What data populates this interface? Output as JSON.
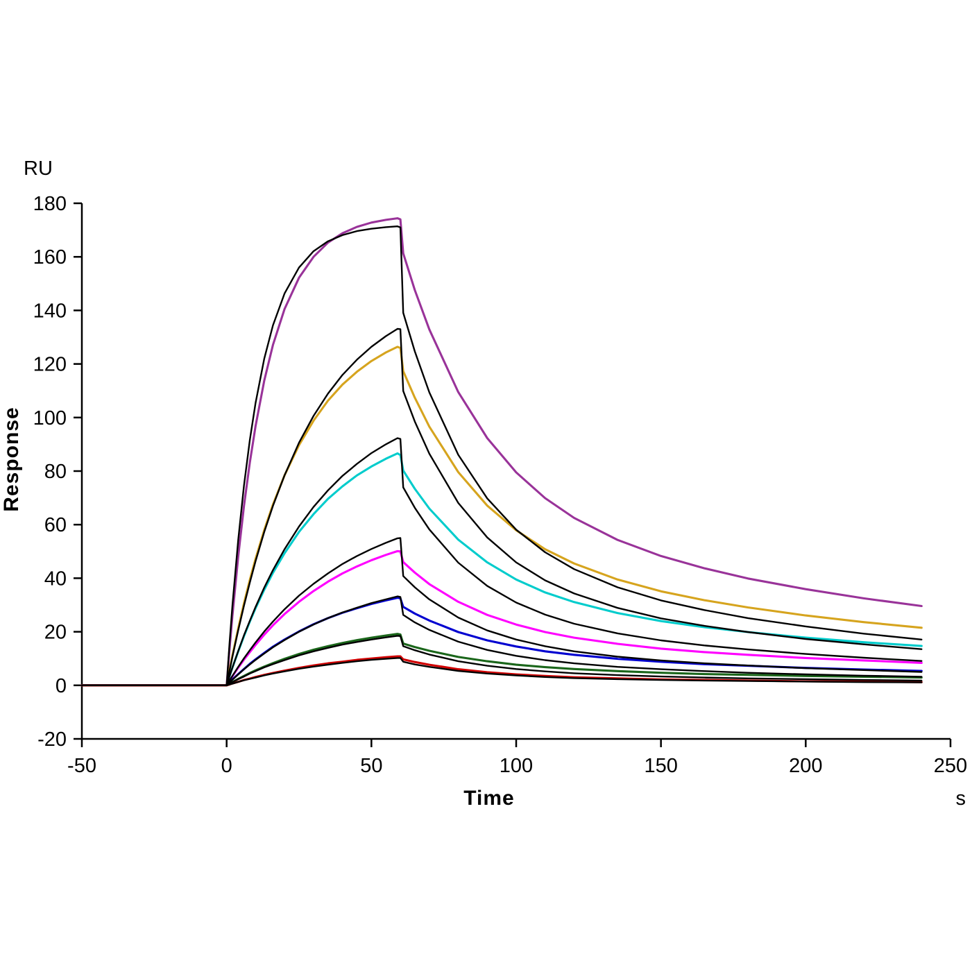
{
  "figure": {
    "background": "#ffffff",
    "axis_color": "#000000"
  },
  "chart_data": {
    "type": "line",
    "title": "",
    "xlabel": "Time",
    "x_unit": "s",
    "ylabel": "Response",
    "y_unit": "RU",
    "xlim": [
      -50,
      250
    ],
    "ylim": [
      -20,
      180
    ],
    "xticks": [
      -50,
      0,
      50,
      100,
      150,
      200,
      250
    ],
    "yticks": [
      -20,
      0,
      20,
      40,
      60,
      80,
      100,
      120,
      140,
      160,
      180
    ],
    "grid": false,
    "legend": "none",
    "association_start": 0,
    "dissociation_start": 60,
    "x": [
      -50,
      -5,
      0,
      1,
      2,
      4,
      6,
      8,
      10,
      13,
      16,
      20,
      25,
      30,
      35,
      40,
      45,
      50,
      55,
      59,
      60,
      61,
      65,
      70,
      80,
      90,
      100,
      110,
      120,
      135,
      150,
      165,
      180,
      200,
      220,
      240
    ],
    "series": [
      {
        "name": "trace-purple",
        "type": "data",
        "color": "#993399",
        "peak_ru": 174,
        "values": [
          0,
          0,
          0,
          13.5,
          26,
          48.2,
          67.1,
          83.2,
          96.9,
          113.8,
          127.1,
          140.5,
          152.2,
          160,
          165.3,
          168.8,
          171.2,
          172.8,
          173.8,
          174.4,
          174,
          161.3,
          147.6,
          132.9,
          109.5,
          92.3,
          79.5,
          69.9,
          62.5,
          54.3,
          48.3,
          43.7,
          39.9,
          35.9,
          32.5,
          29.6
        ]
      },
      {
        "name": "trace-gold",
        "type": "data",
        "color": "#D6A41E",
        "peak_ru": 127,
        "values": [
          0,
          0,
          0,
          5.7,
          11.1,
          21.3,
          30.7,
          39.4,
          47.3,
          58,
          67.5,
          78.4,
          89.7,
          98.8,
          106.3,
          112.3,
          117.1,
          121.1,
          124.3,
          126.4,
          126,
          117.3,
          107.4,
          96.6,
          79.6,
          67.1,
          57.9,
          50.8,
          45.5,
          39.5,
          35.1,
          31.8,
          29.1,
          26.1,
          23.6,
          21.5
        ]
      },
      {
        "name": "trace-cyan",
        "type": "data",
        "color": "#00CCCC",
        "peak_ru": 86,
        "values": [
          0,
          0,
          0,
          3.3,
          6.6,
          12.7,
          18.4,
          23.8,
          28.8,
          35.7,
          42,
          49.3,
          57.3,
          63.9,
          69.6,
          74.3,
          78.4,
          81.7,
          84.6,
          86.6,
          86,
          80.2,
          73.4,
          66,
          54.4,
          45.9,
          39.5,
          34.7,
          31.1,
          27,
          24,
          21.7,
          19.9,
          17.8,
          16.1,
          14.7
        ]
      },
      {
        "name": "trace-magenta",
        "type": "data",
        "color": "#FF00FF",
        "peak_ru": 50,
        "values": [
          0,
          0,
          0,
          1.7,
          3.4,
          6.6,
          9.6,
          12.4,
          15.1,
          18.9,
          22.4,
          26.6,
          31.2,
          35.2,
          38.7,
          41.8,
          44.4,
          46.7,
          48.7,
          50.1,
          50,
          46,
          42.1,
          37.8,
          31.2,
          26.3,
          22.7,
          19.9,
          17.8,
          15.5,
          13.7,
          12.4,
          11.4,
          10.2,
          9.3,
          8.4
        ]
      },
      {
        "name": "trace-blue",
        "type": "data",
        "color": "#0000D0",
        "peak_ru": 33,
        "values": [
          0,
          0,
          0,
          1.1,
          2.2,
          4.2,
          6.1,
          8,
          9.7,
          12.1,
          14.4,
          17.1,
          20.1,
          22.8,
          25.1,
          27.1,
          28.8,
          30.4,
          31.7,
          32.7,
          32.5,
          29.3,
          26.8,
          24.2,
          19.9,
          16.8,
          14.5,
          12.7,
          11.4,
          9.9,
          8.8,
          7.9,
          7.3,
          6.5,
          5.9,
          5.4
        ]
      },
      {
        "name": "trace-green",
        "type": "data",
        "color": "#1A661A",
        "peak_ru": 19,
        "values": [
          0,
          0,
          0,
          0.6,
          1.2,
          2.4,
          3.5,
          4.6,
          5.6,
          7,
          8.3,
          9.9,
          11.7,
          13.3,
          14.6,
          15.8,
          16.9,
          17.8,
          18.6,
          19.2,
          19,
          15.6,
          14.3,
          12.9,
          10.6,
          9,
          7.7,
          6.8,
          6.1,
          5.3,
          4.7,
          4.2,
          3.9,
          3.5,
          3.2,
          2.9
        ]
      },
      {
        "name": "trace-red",
        "type": "data",
        "color": "#D00000",
        "peak_ru": 11,
        "values": [
          0,
          0,
          0,
          0.3,
          0.7,
          1.3,
          2,
          2.5,
          3.1,
          3.9,
          4.6,
          5.5,
          6.5,
          7.4,
          8.2,
          8.8,
          9.5,
          10,
          10.5,
          10.8,
          10.8,
          9.7,
          8.7,
          7.7,
          6,
          4.9,
          4.1,
          3.5,
          3,
          2.6,
          2.2,
          2,
          1.8,
          1.5,
          1.4,
          1.2
        ]
      },
      {
        "name": "fit-purple",
        "type": "fit",
        "color": "#000000",
        "peak_ru": 170,
        "values": [
          0,
          0,
          0,
          15.6,
          29.8,
          54.4,
          74.7,
          91.6,
          105.5,
          122,
          134.4,
          146.3,
          156,
          162.1,
          165.8,
          168.1,
          169.6,
          170.5,
          171.1,
          171.4,
          171,
          139.1,
          124.7,
          109.4,
          86.1,
          69.8,
          58.1,
          49.7,
          43.4,
          36.6,
          31.7,
          28.1,
          25.1,
          22,
          19.3,
          17.1
        ]
      },
      {
        "name": "fit-gold",
        "type": "fit",
        "color": "#000000",
        "peak_ru": 134,
        "values": [
          0,
          0,
          0,
          5.4,
          10.7,
          20.6,
          29.8,
          38.4,
          46.4,
          57.3,
          67,
          78.4,
          90.6,
          100.6,
          108.9,
          115.9,
          121.6,
          126.4,
          130.4,
          133.1,
          133,
          109.9,
          98.5,
          86.5,
          68.1,
          55.2,
          45.9,
          39.2,
          34.3,
          28.9,
          25,
          22.2,
          19.9,
          17.3,
          15.3,
          13.5
        ]
      },
      {
        "name": "fit-cyan",
        "type": "fit",
        "color": "#000000",
        "peak_ru": 91,
        "values": [
          0,
          0,
          0,
          3.4,
          6.6,
          12.8,
          18.7,
          24.1,
          29.3,
          36.5,
          43,
          50.8,
          59.3,
          66.6,
          72.8,
          78.2,
          82.7,
          86.7,
          90,
          92.3,
          92,
          73.9,
          66.3,
          58.2,
          45.8,
          37.1,
          30.9,
          26.4,
          23,
          19.4,
          16.8,
          14.9,
          13.4,
          11.7,
          10.3,
          9.1
        ]
      },
      {
        "name": "fit-magenta",
        "type": "fit",
        "color": "#000000",
        "peak_ru": 55,
        "values": [
          0,
          0,
          0,
          1.8,
          3.5,
          6.9,
          10.1,
          13.1,
          16,
          20.1,
          23.8,
          28.4,
          33.5,
          37.9,
          41.8,
          45.3,
          48.3,
          50.9,
          53.2,
          54.9,
          55,
          40.8,
          36.6,
          32.1,
          25.3,
          20.5,
          17.1,
          14.6,
          12.7,
          10.7,
          9.3,
          8.2,
          7.4,
          6.4,
          5.7,
          5
        ]
      },
      {
        "name": "fit-blue",
        "type": "fit",
        "color": "#000000",
        "peak_ru": 33,
        "values": [
          0,
          0,
          0,
          1.1,
          2.1,
          4.1,
          6,
          7.8,
          9.5,
          11.9,
          14.2,
          16.9,
          20,
          22.7,
          25.1,
          27.2,
          29,
          30.7,
          32.1,
          33.2,
          33,
          26.3,
          23.5,
          20.7,
          16.3,
          13.2,
          11,
          9.4,
          8.2,
          6.9,
          6,
          5.3,
          4.7,
          4.1,
          3.6,
          3.2
        ]
      },
      {
        "name": "fit-green",
        "type": "fit",
        "color": "#000000",
        "peak_ru": 18.5,
        "values": [
          0,
          0,
          0,
          0.6,
          1.2,
          2.3,
          3.3,
          4.4,
          5.3,
          6.7,
          7.9,
          9.4,
          11.2,
          12.7,
          14,
          15.2,
          16.2,
          17.1,
          17.9,
          18.5,
          18.4,
          14.6,
          13.1,
          11.5,
          9,
          7.3,
          6.1,
          5.2,
          4.5,
          3.8,
          3.3,
          2.9,
          2.6,
          2.3,
          2,
          1.8
        ]
      },
      {
        "name": "fit-red",
        "type": "fit",
        "color": "#000000",
        "peak_ru": 10.2,
        "values": [
          0,
          0,
          0,
          0.3,
          0.6,
          1.3,
          1.9,
          2.4,
          2.9,
          3.7,
          4.4,
          5.2,
          6.2,
          7,
          7.7,
          8.4,
          9,
          9.5,
          9.9,
          10.2,
          10.2,
          8.8,
          7.8,
          6.9,
          5.4,
          4.4,
          3.7,
          3.1,
          2.7,
          2.3,
          2,
          1.8,
          1.6,
          1.4,
          1.2,
          1.1
        ]
      }
    ]
  }
}
